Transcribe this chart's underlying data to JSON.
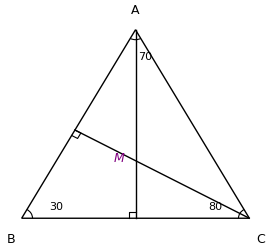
{
  "fig_w": 2.71,
  "fig_h": 2.48,
  "dpi": 100,
  "bg_color": "#ffffff",
  "line_color": "#000000",
  "text_color_M": "#800080",
  "A": [
    0.5,
    0.88
  ],
  "B": [
    0.08,
    0.12
  ],
  "C": [
    0.92,
    0.12
  ],
  "angle_A": "70",
  "angle_B": "30",
  "angle_C": "80",
  "label_A": "A",
  "label_B": "B",
  "label_C": "C",
  "label_M": "M",
  "arc_r": 0.04,
  "rs": 0.025
}
